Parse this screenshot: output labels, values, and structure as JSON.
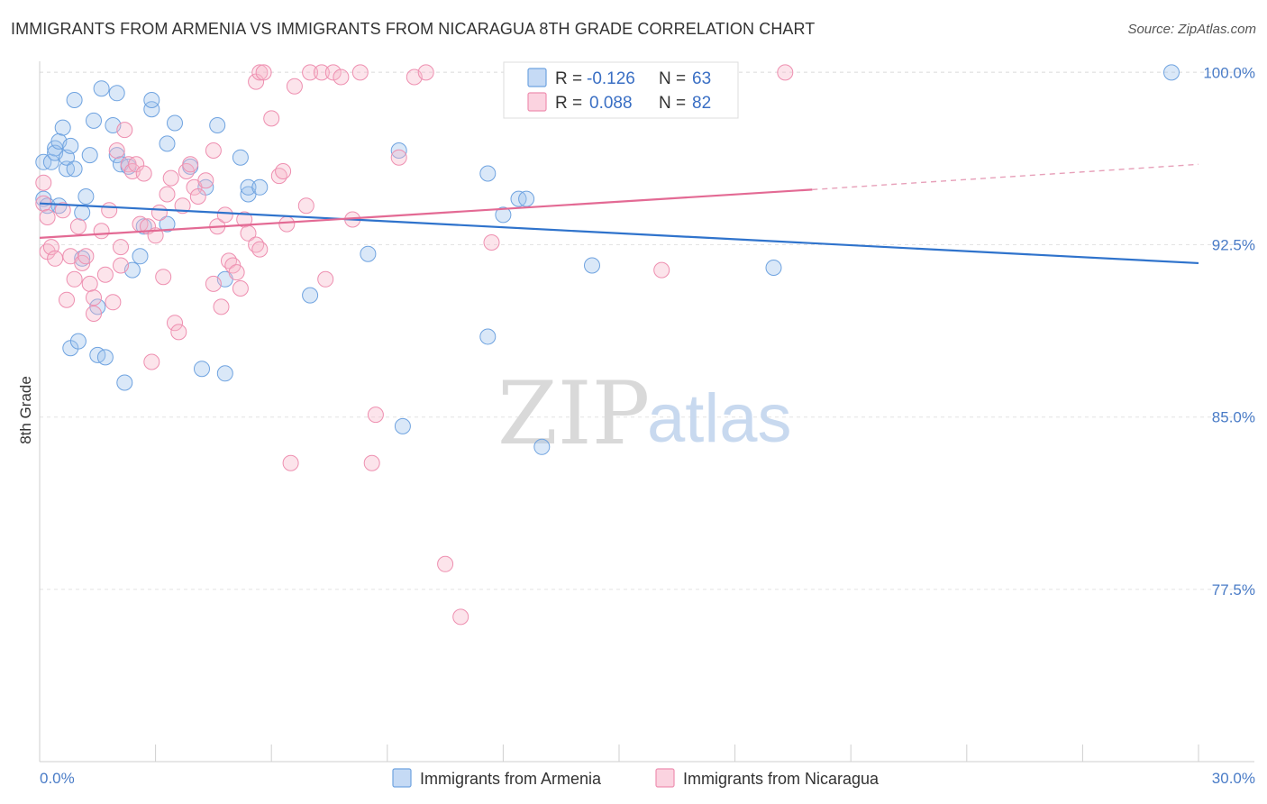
{
  "title": "IMMIGRANTS FROM ARMENIA VS IMMIGRANTS FROM NICARAGUA 8TH GRADE CORRELATION CHART",
  "source": "Source: ZipAtlas.com",
  "watermark": {
    "zip": "ZIP",
    "atlas": "atlas"
  },
  "legend": {
    "r_label": "R =",
    "n_label": "N =",
    "rows": [
      {
        "r": "-0.126",
        "n": "63",
        "color": "#9ec2ec"
      },
      {
        "r": "0.088",
        "n": "82",
        "color": "#f6b8cb"
      }
    ]
  },
  "bottom_legend": [
    {
      "label": "Immigrants from Armenia",
      "color": "#9ec2ec"
    },
    {
      "label": "Immigrants from Nicaragua",
      "color": "#f6b8cb"
    }
  ],
  "chart_data": {
    "type": "scatter",
    "title": "IMMIGRANTS FROM ARMENIA VS IMMIGRANTS FROM NICARAGUA 8TH GRADE CORRELATION CHART",
    "xlabel": "",
    "ylabel": "8th Grade",
    "x_unit": "percent",
    "xlim": [
      0,
      30
    ],
    "ylim": [
      70,
      100.8
    ],
    "x_tick_labels": [
      "0.0%",
      "30.0%"
    ],
    "y_ticks": [
      77.5,
      85.0,
      92.5,
      100.0
    ],
    "y_tick_labels": [
      "77.5%",
      "85.0%",
      "92.5%",
      "100.0%"
    ],
    "grid": "horizontal dashed",
    "legend_position": "top-center",
    "series": [
      {
        "name": "Immigrants from Armenia",
        "color": "#6fa3e0",
        "r": -0.126,
        "n": 63,
        "trend": {
          "x": [
            0,
            30
          ],
          "y": [
            94.3,
            91.7
          ]
        },
        "points": [
          [
            0.1,
            94.5
          ],
          [
            0.1,
            96.1
          ],
          [
            0.2,
            94.2
          ],
          [
            0.3,
            96.1
          ],
          [
            0.4,
            96.7
          ],
          [
            0.4,
            96.5
          ],
          [
            0.5,
            94.2
          ],
          [
            0.5,
            97.0
          ],
          [
            0.6,
            97.6
          ],
          [
            0.7,
            95.8
          ],
          [
            0.7,
            96.3
          ],
          [
            0.8,
            88.0
          ],
          [
            0.8,
            96.8
          ],
          [
            0.9,
            95.8
          ],
          [
            0.9,
            98.8
          ],
          [
            1.0,
            88.3
          ],
          [
            1.1,
            91.9
          ],
          [
            1.1,
            93.9
          ],
          [
            1.2,
            94.6
          ],
          [
            1.3,
            96.4
          ],
          [
            1.4,
            97.9
          ],
          [
            1.5,
            87.7
          ],
          [
            1.5,
            89.8
          ],
          [
            1.6,
            99.3
          ],
          [
            1.7,
            87.6
          ],
          [
            1.9,
            97.7
          ],
          [
            2.0,
            96.4
          ],
          [
            2.0,
            99.1
          ],
          [
            2.1,
            96.0
          ],
          [
            2.2,
            86.5
          ],
          [
            2.3,
            95.9
          ],
          [
            2.4,
            91.4
          ],
          [
            2.6,
            92.0
          ],
          [
            2.7,
            93.3
          ],
          [
            2.9,
            98.4
          ],
          [
            2.9,
            98.8
          ],
          [
            3.3,
            93.4
          ],
          [
            3.3,
            96.9
          ],
          [
            3.5,
            97.8
          ],
          [
            3.9,
            95.9
          ],
          [
            4.2,
            87.1
          ],
          [
            4.3,
            95.0
          ],
          [
            4.6,
            97.7
          ],
          [
            4.8,
            91.0
          ],
          [
            4.8,
            86.9
          ],
          [
            5.2,
            96.3
          ],
          [
            5.4,
            94.7
          ],
          [
            5.4,
            95.0
          ],
          [
            5.7,
            95.0
          ],
          [
            7.0,
            90.3
          ],
          [
            8.5,
            92.1
          ],
          [
            9.4,
            84.6
          ],
          [
            9.3,
            96.6
          ],
          [
            11.6,
            88.5
          ],
          [
            11.6,
            95.6
          ],
          [
            12.0,
            93.8
          ],
          [
            12.4,
            94.5
          ],
          [
            12.6,
            94.5
          ],
          [
            13.0,
            83.7
          ],
          [
            14.3,
            91.6
          ],
          [
            19.0,
            91.5
          ],
          [
            29.3,
            100.0
          ]
        ]
      },
      {
        "name": "Immigrants from Nicaragua",
        "color": "#ee8fb0",
        "r": 0.088,
        "n": 82,
        "trend": {
          "x": [
            0,
            20
          ],
          "y": [
            92.8,
            94.9
          ]
        },
        "trend_extension": {
          "x": [
            20,
            30
          ],
          "y": [
            94.9,
            96.0
          ]
        },
        "points": [
          [
            0.1,
            95.2
          ],
          [
            0.1,
            94.3
          ],
          [
            0.2,
            93.7
          ],
          [
            0.2,
            92.2
          ],
          [
            0.3,
            92.4
          ],
          [
            0.4,
            91.9
          ],
          [
            0.6,
            94.0
          ],
          [
            0.7,
            90.1
          ],
          [
            0.8,
            92.0
          ],
          [
            0.9,
            91.0
          ],
          [
            1.0,
            93.3
          ],
          [
            1.1,
            91.7
          ],
          [
            1.2,
            92.0
          ],
          [
            1.3,
            90.8
          ],
          [
            1.4,
            89.5
          ],
          [
            1.4,
            90.2
          ],
          [
            1.6,
            93.1
          ],
          [
            1.7,
            91.2
          ],
          [
            1.8,
            94.0
          ],
          [
            1.9,
            90.0
          ],
          [
            2.0,
            96.6
          ],
          [
            2.1,
            91.6
          ],
          [
            2.1,
            92.4
          ],
          [
            2.2,
            97.5
          ],
          [
            2.3,
            96.0
          ],
          [
            2.4,
            95.7
          ],
          [
            2.5,
            96.0
          ],
          [
            2.6,
            93.4
          ],
          [
            2.7,
            95.6
          ],
          [
            2.8,
            93.3
          ],
          [
            2.9,
            87.4
          ],
          [
            3.0,
            92.9
          ],
          [
            3.1,
            93.9
          ],
          [
            3.2,
            91.1
          ],
          [
            3.3,
            94.7
          ],
          [
            3.4,
            95.4
          ],
          [
            3.5,
            89.1
          ],
          [
            3.6,
            88.7
          ],
          [
            3.7,
            94.2
          ],
          [
            3.8,
            95.7
          ],
          [
            3.9,
            96.0
          ],
          [
            4.0,
            95.0
          ],
          [
            4.1,
            94.6
          ],
          [
            4.3,
            95.3
          ],
          [
            4.5,
            90.8
          ],
          [
            4.5,
            96.6
          ],
          [
            4.6,
            93.3
          ],
          [
            4.7,
            89.8
          ],
          [
            4.8,
            93.8
          ],
          [
            4.9,
            91.8
          ],
          [
            5.0,
            91.6
          ],
          [
            5.1,
            91.3
          ],
          [
            5.2,
            90.6
          ],
          [
            5.3,
            93.6
          ],
          [
            5.4,
            93.0
          ],
          [
            5.6,
            92.5
          ],
          [
            5.6,
            99.6
          ],
          [
            5.7,
            100.0
          ],
          [
            5.7,
            92.3
          ],
          [
            5.8,
            100.0
          ],
          [
            6.0,
            98.0
          ],
          [
            6.2,
            95.5
          ],
          [
            6.3,
            95.7
          ],
          [
            6.4,
            93.4
          ],
          [
            6.5,
            83.0
          ],
          [
            6.6,
            99.4
          ],
          [
            6.9,
            94.2
          ],
          [
            7.0,
            100.0
          ],
          [
            7.3,
            100.0
          ],
          [
            7.4,
            91.0
          ],
          [
            7.6,
            100.0
          ],
          [
            7.8,
            99.8
          ],
          [
            8.1,
            93.6
          ],
          [
            8.3,
            100.0
          ],
          [
            8.6,
            83.0
          ],
          [
            8.7,
            85.1
          ],
          [
            9.3,
            96.3
          ],
          [
            9.7,
            99.8
          ],
          [
            10.0,
            100.0
          ],
          [
            10.5,
            78.6
          ],
          [
            10.9,
            76.3
          ],
          [
            11.7,
            92.6
          ],
          [
            16.1,
            91.4
          ],
          [
            19.3,
            100.0
          ]
        ]
      }
    ]
  }
}
